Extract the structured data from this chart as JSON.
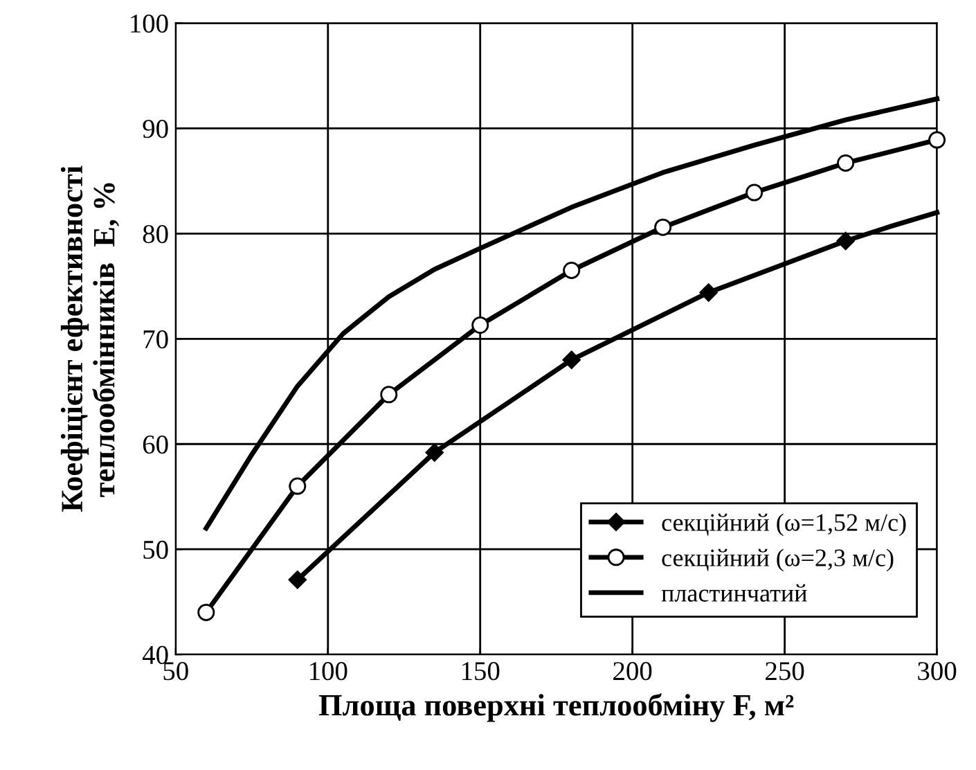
{
  "chart_data": {
    "type": "line",
    "xlabel": "Площа поверхні теплообміну F, м²",
    "ylabel": "Коефіцієнт ефективності\nтеплообмінників  E, %",
    "xlim": [
      50,
      300
    ],
    "ylim": [
      40,
      100
    ],
    "xticks": [
      50,
      100,
      150,
      200,
      250,
      300
    ],
    "yticks": [
      40,
      50,
      60,
      70,
      80,
      90,
      100
    ],
    "grid": true,
    "legend": "bottom right",
    "series": [
      {
        "name": "секційний (ω=1,52 м/с)",
        "color": "#000000",
        "marker": "diamond",
        "x": [
          90,
          135,
          180,
          225,
          270
        ],
        "values": [
          47.1,
          59.2,
          68.0,
          74.4,
          79.3
        ]
      },
      {
        "name": "секційний (ω=2,3 м/с)",
        "color": "#000000",
        "marker": "circle",
        "x": [
          60,
          90,
          120,
          150,
          180,
          210,
          240,
          270,
          300
        ],
        "values": [
          44.0,
          56.0,
          64.7,
          71.3,
          76.5,
          80.6,
          83.9,
          86.7,
          88.9
        ]
      },
      {
        "color": "#000000",
        "marker": "none",
        "x": [
          270,
          285,
          300
        ],
        "values": [
          79.3,
          80.7,
          82.0
        ]
      },
      {
        "name": "пластинчатий",
        "color": "#000000",
        "marker": "none",
        "x": [
          60,
          75,
          90,
          105,
          120,
          135,
          150,
          180,
          210,
          240,
          270,
          300
        ],
        "values": [
          52.0,
          59.0,
          65.5,
          70.5,
          74.0,
          76.6,
          78.6,
          82.5,
          85.8,
          88.4,
          90.8,
          92.8
        ]
      }
    ]
  }
}
